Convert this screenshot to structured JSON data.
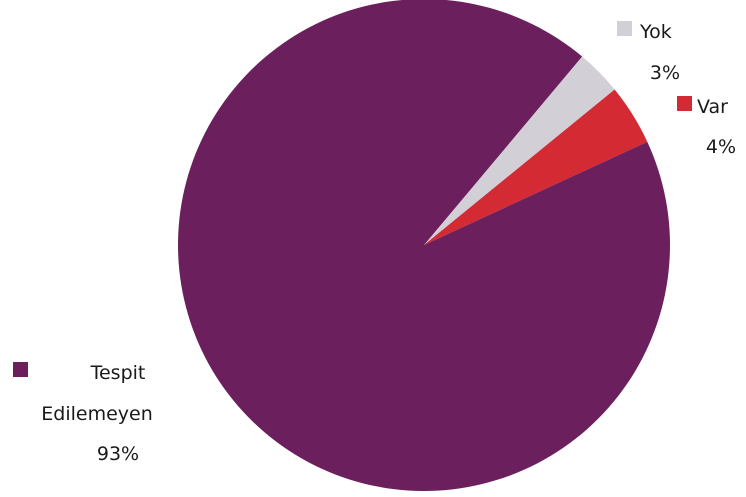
{
  "chart_data": {
    "type": "pie",
    "title": "",
    "slices": [
      {
        "label": "Yok",
        "label_lines": [
          "Yok"
        ],
        "value": 3,
        "value_label": "3%",
        "color": "#d2d0d6"
      },
      {
        "label": "Var",
        "label_lines": [
          "Var"
        ],
        "value": 4,
        "value_label": "4%",
        "color": "#d42a33"
      },
      {
        "label": "Tespit Edilemeyen",
        "label_lines": [
          "Tespit",
          "Edilemeyen"
        ],
        "value": 93,
        "value_label": "93%",
        "color": "#6b1f5d"
      }
    ],
    "legend": "inline labels beside slices"
  }
}
